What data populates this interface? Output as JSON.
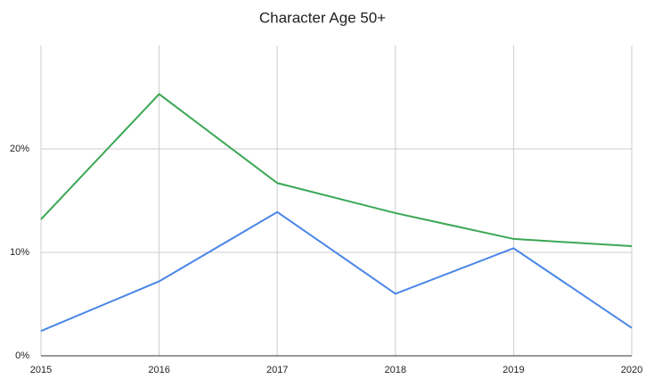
{
  "chart_data": {
    "type": "line",
    "title": "Character Age 50+",
    "x": [
      2015,
      2016,
      2017,
      2018,
      2019,
      2020
    ],
    "series": [
      {
        "color": "#3ba755",
        "values": [
          13.2,
          25.3,
          16.7,
          13.8,
          11.3,
          10.6
        ]
      },
      {
        "color": "#4a86e8",
        "values": [
          2.4,
          7.2,
          13.9,
          6.0,
          10.4,
          2.7
        ]
      }
    ],
    "xlim": [
      2015,
      2020
    ],
    "xticks": [
      2015,
      2016,
      2017,
      2018,
      2019,
      2020
    ],
    "ylim": [
      0,
      30
    ],
    "yticks": [
      {
        "value": 0,
        "label": "0%"
      },
      {
        "value": 10,
        "label": "10%"
      },
      {
        "value": 20,
        "label": "20%"
      }
    ],
    "grid": true
  }
}
